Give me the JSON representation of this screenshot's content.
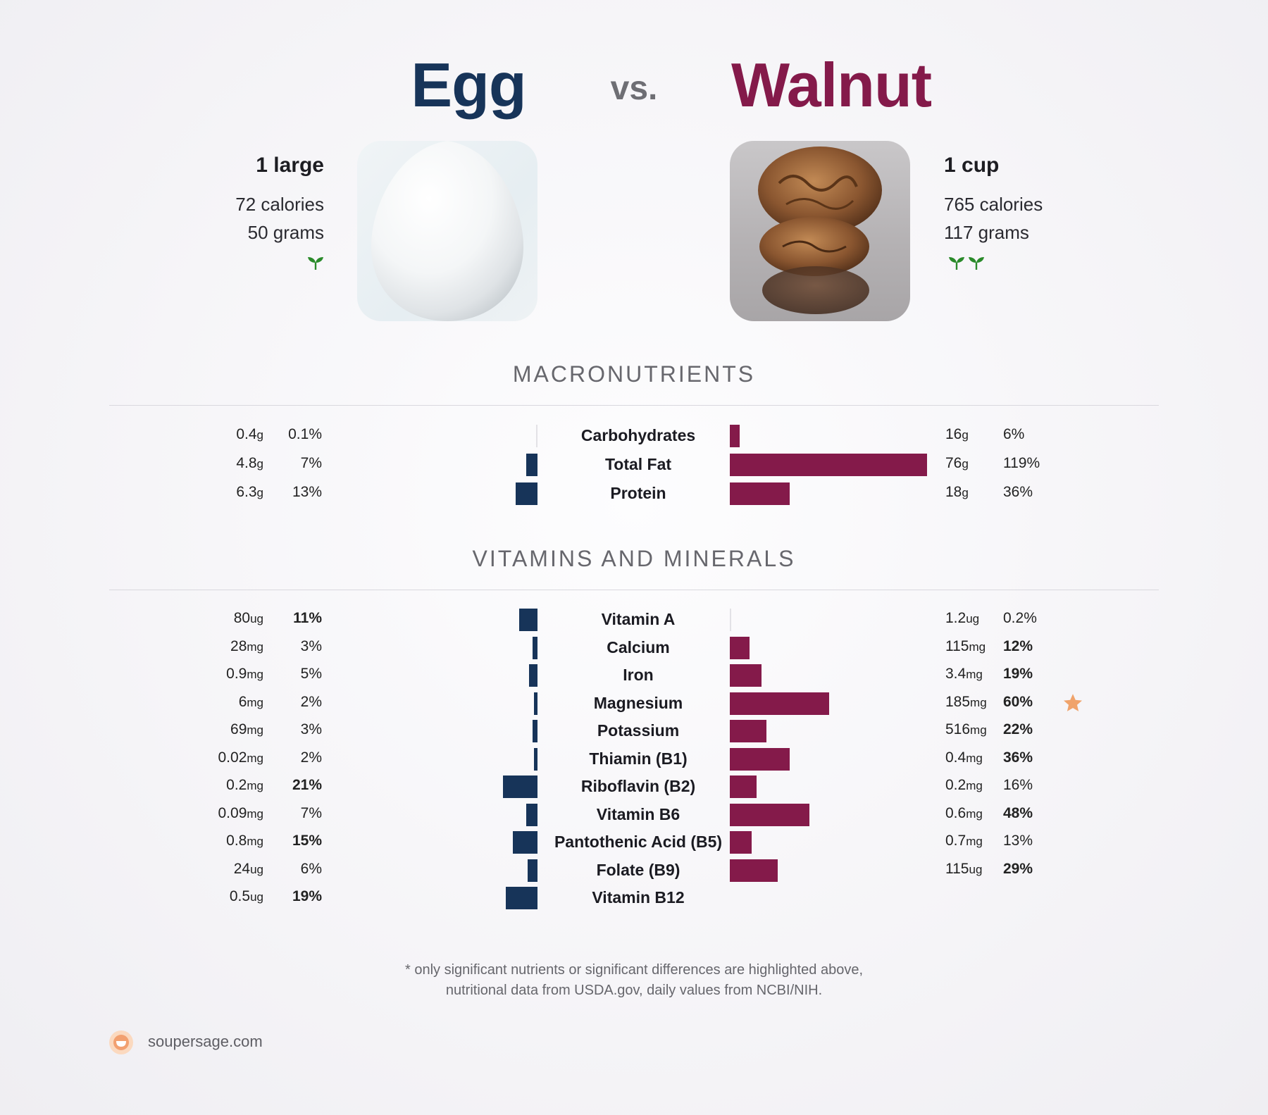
{
  "title": {
    "left": "Egg",
    "vs": "vs.",
    "right": "Walnut"
  },
  "colors": {
    "left": "#173459",
    "right": "#841a4a",
    "star": "#f0a36b",
    "sprout": "#2a8a2a"
  },
  "left_food": {
    "serving": "1 large",
    "calories": "72 calories",
    "grams": "50 grams",
    "sprouts": 1
  },
  "right_food": {
    "serving": "1 cup",
    "calories": "765 calories",
    "grams": "117 grams",
    "sprouts": 2
  },
  "sections": {
    "macros": "MACRONUTRIENTS",
    "vitamins": "VITAMINS AND MINERALS"
  },
  "chart_data": {
    "type": "bar",
    "series": [
      {
        "name": "Egg"
      },
      {
        "name": "Walnut"
      }
    ],
    "macros": [
      {
        "name": "Carbohydrates",
        "left_amount": "0.4",
        "left_unit": "g",
        "left_pct": "0.1%",
        "left_value": 0.1,
        "left_bold": false,
        "right_amount": "16",
        "right_unit": "g",
        "right_pct": "6%",
        "right_value": 6,
        "right_bold": false
      },
      {
        "name": "Total Fat",
        "left_amount": "4.8",
        "left_unit": "g",
        "left_pct": "7%",
        "left_value": 7,
        "left_bold": false,
        "right_amount": "76",
        "right_unit": "g",
        "right_pct": "119%",
        "right_value": 119,
        "right_bold": false
      },
      {
        "name": "Protein",
        "left_amount": "6.3",
        "left_unit": "g",
        "left_pct": "13%",
        "left_value": 13,
        "left_bold": false,
        "right_amount": "18",
        "right_unit": "g",
        "right_pct": "36%",
        "right_value": 36,
        "right_bold": false
      }
    ],
    "vitamins": [
      {
        "name": "Vitamin A",
        "left_amount": "80",
        "left_unit": "ug",
        "left_pct": "11%",
        "left_value": 11,
        "left_bold": true,
        "right_amount": "1.2",
        "right_unit": "ug",
        "right_pct": "0.2%",
        "right_value": 0.2,
        "right_bold": false
      },
      {
        "name": "Calcium",
        "left_amount": "28",
        "left_unit": "mg",
        "left_pct": "3%",
        "left_value": 3,
        "left_bold": false,
        "right_amount": "115",
        "right_unit": "mg",
        "right_pct": "12%",
        "right_value": 12,
        "right_bold": true
      },
      {
        "name": "Iron",
        "left_amount": "0.9",
        "left_unit": "mg",
        "left_pct": "5%",
        "left_value": 5,
        "left_bold": false,
        "right_amount": "3.4",
        "right_unit": "mg",
        "right_pct": "19%",
        "right_value": 19,
        "right_bold": true
      },
      {
        "name": "Magnesium",
        "left_amount": "6",
        "left_unit": "mg",
        "left_pct": "2%",
        "left_value": 2,
        "left_bold": false,
        "right_amount": "185",
        "right_unit": "mg",
        "right_pct": "60%",
        "right_value": 60,
        "right_bold": true,
        "star": true
      },
      {
        "name": "Potassium",
        "left_amount": "69",
        "left_unit": "mg",
        "left_pct": "3%",
        "left_value": 3,
        "left_bold": false,
        "right_amount": "516",
        "right_unit": "mg",
        "right_pct": "22%",
        "right_value": 22,
        "right_bold": true
      },
      {
        "name": "Thiamin (B1)",
        "left_amount": "0.02",
        "left_unit": "mg",
        "left_pct": "2%",
        "left_value": 2,
        "left_bold": false,
        "right_amount": "0.4",
        "right_unit": "mg",
        "right_pct": "36%",
        "right_value": 36,
        "right_bold": true
      },
      {
        "name": "Riboflavin (B2)",
        "left_amount": "0.2",
        "left_unit": "mg",
        "left_pct": "21%",
        "left_value": 21,
        "left_bold": true,
        "right_amount": "0.2",
        "right_unit": "mg",
        "right_pct": "16%",
        "right_value": 16,
        "right_bold": false
      },
      {
        "name": "Vitamin B6",
        "left_amount": "0.09",
        "left_unit": "mg",
        "left_pct": "7%",
        "left_value": 7,
        "left_bold": false,
        "right_amount": "0.6",
        "right_unit": "mg",
        "right_pct": "48%",
        "right_value": 48,
        "right_bold": true
      },
      {
        "name": "Pantothenic Acid (B5)",
        "left_amount": "0.8",
        "left_unit": "mg",
        "left_pct": "15%",
        "left_value": 15,
        "left_bold": true,
        "right_amount": "0.7",
        "right_unit": "mg",
        "right_pct": "13%",
        "right_value": 13,
        "right_bold": false
      },
      {
        "name": "Folate (B9)",
        "left_amount": "24",
        "left_unit": "ug",
        "left_pct": "6%",
        "left_value": 6,
        "left_bold": false,
        "right_amount": "115",
        "right_unit": "ug",
        "right_pct": "29%",
        "right_value": 29,
        "right_bold": true
      },
      {
        "name": "Vitamin B12",
        "left_amount": "0.5",
        "left_unit": "ug",
        "left_pct": "19%",
        "left_value": 19,
        "left_bold": true,
        "right_amount": "",
        "right_unit": "",
        "right_pct": "",
        "right_value": 0,
        "right_bold": false
      }
    ]
  },
  "footnote": {
    "line1": "* only significant nutrients or significant differences are highlighted above,",
    "line2": "nutritional data from USDA.gov, daily values from NCBI/NIH."
  },
  "brand": {
    "name": "soupersage.com",
    "icon": "soupersage-logo-icon"
  }
}
